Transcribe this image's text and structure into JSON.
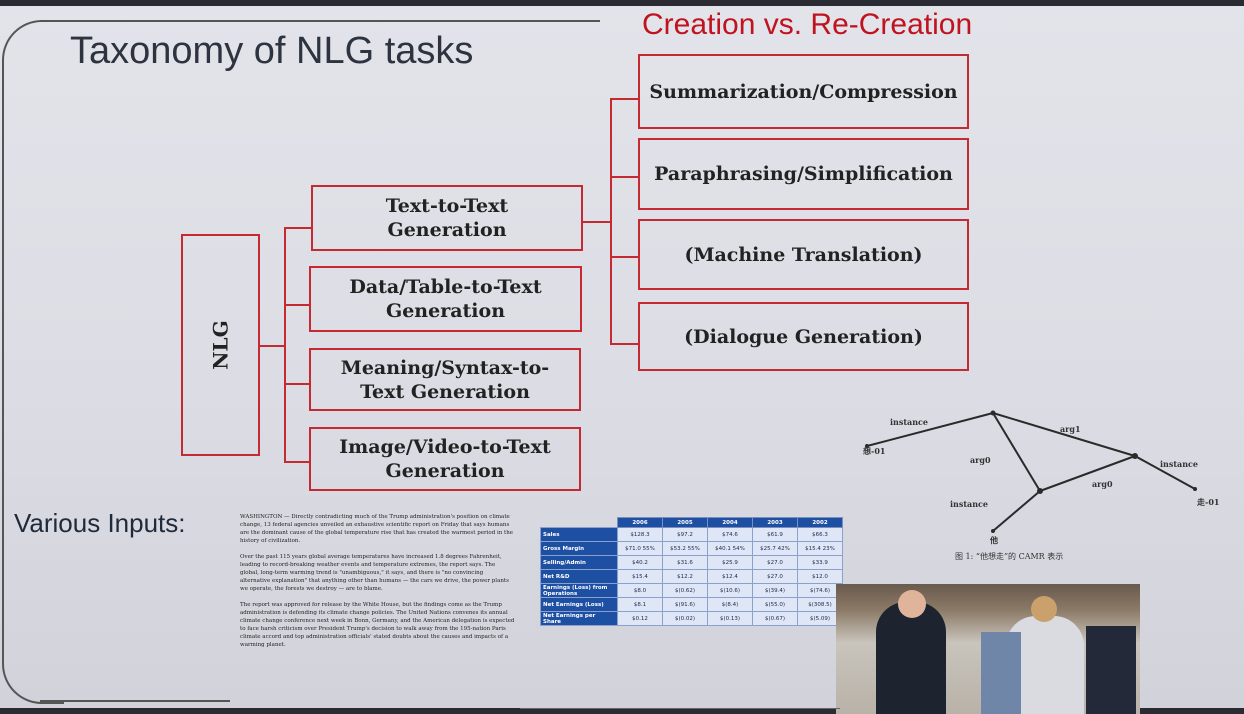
{
  "slide": {
    "title": "Taxonomy of NLG tasks",
    "subtitle": "Creation vs. Re-Creation",
    "root": "NLG",
    "categories": [
      "Text-to-Text Generation",
      "Data/Table-to-Text Generation",
      "Meaning/Syntax-to-Text Generation",
      "Image/Video-to-Text Generation"
    ],
    "subtasks": [
      "Summarization/Compression",
      "Paraphrasing/Simplification",
      "(Machine Translation)",
      "(Dialogue Generation)"
    ],
    "inputs_label": "Various Inputs:"
  },
  "article": {
    "paragraphs": [
      "WASHINGTON — Directly contradicting much of the Trump administration's position on climate change, 13 federal agencies unveiled an exhaustive scientific report on Friday that says humans are the dominant cause of the global temperature rise that has created the warmest period in the history of civilization.",
      "Over the past 115 years global average temperatures have increased 1.8 degrees Fahrenheit, leading to record-breaking weather events and temperature extremes, the report says. The global, long-term warming trend is \"unambiguous,\" it says, and there is \"no convincing alternative explanation\" that anything other than humans — the cars we drive, the power plants we operate, the forests we destroy — are to blame.",
      "The report was approved for release by the White House, but the findings come as the Trump administration is defending its climate change policies. The United Nations convenes its annual climate change conference next week in Bonn, Germany, and the American delegation is expected to face harsh criticism over President Trump's decision to walk away from the 195-nation Paris climate accord and top administration officials' stated doubts about the causes and impacts of a warming planet."
    ]
  },
  "table": {
    "years": [
      "2006",
      "2005",
      "2004",
      "2003",
      "2002"
    ],
    "rows": [
      {
        "label": "Sales",
        "cells": [
          "$128.3",
          "$97.2",
          "$74.6",
          "$61.9",
          "$66.3"
        ]
      },
      {
        "label": "Gross Margin",
        "cells": [
          "$71.0 55%",
          "$53.2 55%",
          "$40.1 54%",
          "$25.7 42%",
          "$15.4 23%"
        ]
      },
      {
        "label": "Selling/Admin",
        "cells": [
          "$40.2",
          "$31.6",
          "$25.9",
          "$27.0",
          "$33.9"
        ]
      },
      {
        "label": "Net R&D",
        "cells": [
          "$15.4",
          "$12.2",
          "$12.4",
          "$27.0",
          "$12.0"
        ]
      },
      {
        "label": "Earnings (Loss) from Operations",
        "cells": [
          "$8.0",
          "$(0.62)",
          "$(10.6)",
          "$(39.4)",
          "$(74.6)"
        ]
      },
      {
        "label": "Net Earnings (Loss)",
        "cells": [
          "$8.1",
          "$(91.6)",
          "$(8.4)",
          "$(55.0)",
          "$(308.5)"
        ]
      },
      {
        "label": "Net Earnings per Share",
        "cells": [
          "$0.12",
          "$(0.02)",
          "$(0.13)",
          "$(0.67)",
          "$(5.09)"
        ]
      }
    ]
  },
  "graph": {
    "edge_labels": [
      "instance",
      "arg1",
      "arg0",
      "arg0",
      "instance",
      "instance"
    ],
    "node_labels": [
      "想-01",
      "走-01",
      "他"
    ],
    "caption": "图 1: “他想走”的 CAMR 表示"
  }
}
